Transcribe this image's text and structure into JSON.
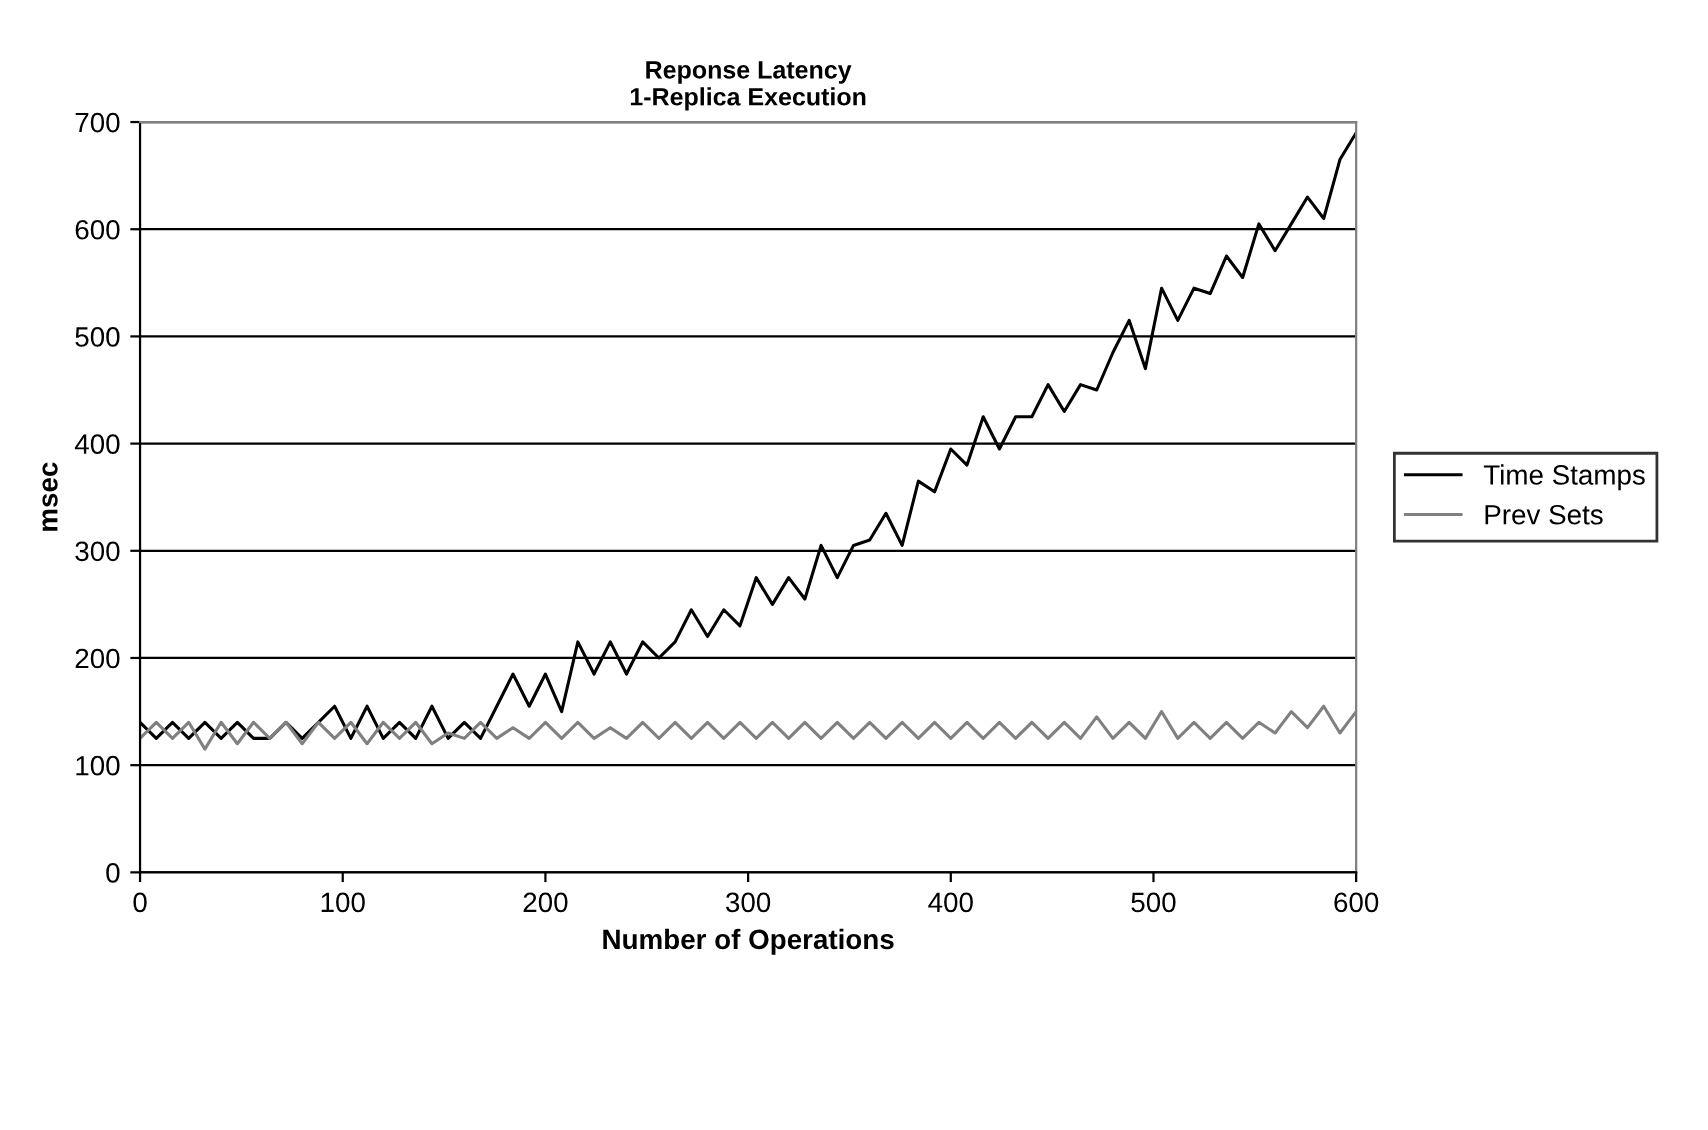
{
  "chart_data": {
    "type": "line",
    "title": "Reponse Latency\n1-Replica Execution",
    "xlabel": "Number of Operations",
    "ylabel": "msec",
    "xlim": [
      0,
      600
    ],
    "xticks": [
      0,
      100,
      200,
      300,
      400,
      500,
      600
    ],
    "ylim": [
      0,
      700
    ],
    "yticks": [
      0,
      100,
      200,
      300,
      400,
      500,
      600,
      700
    ],
    "grid": "y",
    "legend": "right",
    "series": [
      {
        "name": "Time Stamps",
        "color": "#000000",
        "x": [
          0,
          8,
          16,
          24,
          32,
          40,
          48,
          56,
          64,
          72,
          80,
          88,
          96,
          104,
          112,
          120,
          128,
          136,
          144,
          152,
          160,
          168,
          176,
          184,
          192,
          200,
          208,
          216,
          224,
          232,
          240,
          248,
          256,
          264,
          272,
          280,
          288,
          296,
          304,
          312,
          320,
          328,
          336,
          344,
          352,
          360,
          368,
          376,
          384,
          392,
          400,
          408,
          416,
          424,
          432,
          440,
          448,
          456,
          464,
          472,
          480,
          488,
          496,
          504,
          512,
          520,
          528,
          536,
          544,
          552,
          560,
          568,
          576,
          584,
          592,
          600
        ],
        "values": [
          140,
          125,
          140,
          125,
          140,
          125,
          140,
          125,
          125,
          140,
          125,
          140,
          155,
          125,
          155,
          125,
          140,
          125,
          155,
          125,
          140,
          125,
          155,
          185,
          155,
          185,
          150,
          215,
          185,
          215,
          185,
          215,
          200,
          215,
          245,
          220,
          245,
          230,
          275,
          250,
          275,
          255,
          305,
          275,
          305,
          310,
          335,
          305,
          365,
          355,
          395,
          380,
          425,
          395,
          425,
          425,
          455,
          430,
          455,
          450,
          485,
          515,
          470,
          545,
          515,
          545,
          540,
          575,
          555,
          605,
          580,
          605,
          630,
          610,
          665,
          690
        ]
      },
      {
        "name": "Prev Sets",
        "color": "#808080",
        "x": [
          0,
          8,
          16,
          24,
          32,
          40,
          48,
          56,
          64,
          72,
          80,
          88,
          96,
          104,
          112,
          120,
          128,
          136,
          144,
          152,
          160,
          168,
          176,
          184,
          192,
          200,
          208,
          216,
          224,
          232,
          240,
          248,
          256,
          264,
          272,
          280,
          288,
          296,
          304,
          312,
          320,
          328,
          336,
          344,
          352,
          360,
          368,
          376,
          384,
          392,
          400,
          408,
          416,
          424,
          432,
          440,
          448,
          456,
          464,
          472,
          480,
          488,
          496,
          504,
          512,
          520,
          528,
          536,
          544,
          552,
          560,
          568,
          576,
          584,
          592,
          600
        ],
        "values": [
          125,
          140,
          125,
          140,
          115,
          140,
          120,
          140,
          125,
          140,
          120,
          140,
          125,
          140,
          120,
          140,
          125,
          140,
          120,
          130,
          125,
          140,
          125,
          135,
          125,
          140,
          125,
          140,
          125,
          135,
          125,
          140,
          125,
          140,
          125,
          140,
          125,
          140,
          125,
          140,
          125,
          140,
          125,
          140,
          125,
          140,
          125,
          140,
          125,
          140,
          125,
          140,
          125,
          140,
          125,
          140,
          125,
          140,
          125,
          145,
          125,
          140,
          125,
          150,
          125,
          140,
          125,
          140,
          125,
          140,
          130,
          150,
          135,
          155,
          130,
          150
        ]
      }
    ]
  }
}
